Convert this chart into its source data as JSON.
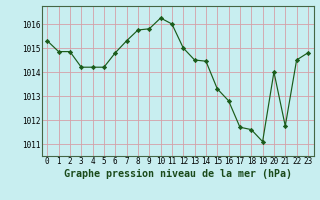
{
  "x": [
    0,
    1,
    2,
    3,
    4,
    5,
    6,
    7,
    8,
    9,
    10,
    11,
    12,
    13,
    14,
    15,
    16,
    17,
    18,
    19,
    20,
    21,
    22,
    23
  ],
  "y": [
    1015.3,
    1014.85,
    1014.85,
    1014.2,
    1014.2,
    1014.2,
    1014.8,
    1015.3,
    1015.75,
    1015.8,
    1016.25,
    1016.0,
    1015.0,
    1014.5,
    1014.45,
    1013.3,
    1012.8,
    1011.7,
    1011.6,
    1011.1,
    1014.0,
    1011.75,
    1014.5,
    1014.8
  ],
  "line_color": "#1a5c1a",
  "marker": "D",
  "marker_size": 2.2,
  "bg_color": "#c8eef0",
  "grid_color": "#d4a0a8",
  "title": "Graphe pression niveau de la mer (hPa)",
  "ylim": [
    1010.5,
    1016.75
  ],
  "yticks": [
    1011,
    1012,
    1013,
    1014,
    1015,
    1016
  ],
  "tick_fontsize": 5.5,
  "title_fontsize": 7.2,
  "line_width": 0.85
}
